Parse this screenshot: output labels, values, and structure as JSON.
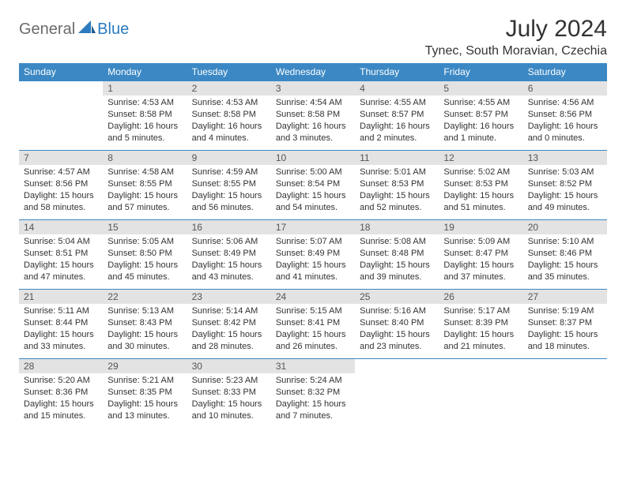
{
  "brand": {
    "part1": "General",
    "part2": "Blue"
  },
  "title": "July 2024",
  "location": "Tynec, South Moravian, Czechia",
  "colors": {
    "header_bg": "#3b88c4",
    "header_text": "#ffffff",
    "daynum_bg": "#e3e3e3",
    "daynum_text": "#555555",
    "body_text": "#333333",
    "border": "#3b88c4",
    "logo_gray": "#6b6b6b",
    "logo_blue": "#2b7bbf",
    "background": "#ffffff"
  },
  "typography": {
    "title_fontsize": 30,
    "location_fontsize": 16,
    "header_fontsize": 12,
    "daynum_fontsize": 12,
    "body_fontsize": 11
  },
  "weekdays": [
    "Sunday",
    "Monday",
    "Tuesday",
    "Wednesday",
    "Thursday",
    "Friday",
    "Saturday"
  ],
  "weeks": [
    [
      {
        "n": "",
        "sr": "",
        "ss": "",
        "dl": ""
      },
      {
        "n": "1",
        "sr": "Sunrise: 4:53 AM",
        "ss": "Sunset: 8:58 PM",
        "dl": "Daylight: 16 hours and 5 minutes."
      },
      {
        "n": "2",
        "sr": "Sunrise: 4:53 AM",
        "ss": "Sunset: 8:58 PM",
        "dl": "Daylight: 16 hours and 4 minutes."
      },
      {
        "n": "3",
        "sr": "Sunrise: 4:54 AM",
        "ss": "Sunset: 8:58 PM",
        "dl": "Daylight: 16 hours and 3 minutes."
      },
      {
        "n": "4",
        "sr": "Sunrise: 4:55 AM",
        "ss": "Sunset: 8:57 PM",
        "dl": "Daylight: 16 hours and 2 minutes."
      },
      {
        "n": "5",
        "sr": "Sunrise: 4:55 AM",
        "ss": "Sunset: 8:57 PM",
        "dl": "Daylight: 16 hours and 1 minute."
      },
      {
        "n": "6",
        "sr": "Sunrise: 4:56 AM",
        "ss": "Sunset: 8:56 PM",
        "dl": "Daylight: 16 hours and 0 minutes."
      }
    ],
    [
      {
        "n": "7",
        "sr": "Sunrise: 4:57 AM",
        "ss": "Sunset: 8:56 PM",
        "dl": "Daylight: 15 hours and 58 minutes."
      },
      {
        "n": "8",
        "sr": "Sunrise: 4:58 AM",
        "ss": "Sunset: 8:55 PM",
        "dl": "Daylight: 15 hours and 57 minutes."
      },
      {
        "n": "9",
        "sr": "Sunrise: 4:59 AM",
        "ss": "Sunset: 8:55 PM",
        "dl": "Daylight: 15 hours and 56 minutes."
      },
      {
        "n": "10",
        "sr": "Sunrise: 5:00 AM",
        "ss": "Sunset: 8:54 PM",
        "dl": "Daylight: 15 hours and 54 minutes."
      },
      {
        "n": "11",
        "sr": "Sunrise: 5:01 AM",
        "ss": "Sunset: 8:53 PM",
        "dl": "Daylight: 15 hours and 52 minutes."
      },
      {
        "n": "12",
        "sr": "Sunrise: 5:02 AM",
        "ss": "Sunset: 8:53 PM",
        "dl": "Daylight: 15 hours and 51 minutes."
      },
      {
        "n": "13",
        "sr": "Sunrise: 5:03 AM",
        "ss": "Sunset: 8:52 PM",
        "dl": "Daylight: 15 hours and 49 minutes."
      }
    ],
    [
      {
        "n": "14",
        "sr": "Sunrise: 5:04 AM",
        "ss": "Sunset: 8:51 PM",
        "dl": "Daylight: 15 hours and 47 minutes."
      },
      {
        "n": "15",
        "sr": "Sunrise: 5:05 AM",
        "ss": "Sunset: 8:50 PM",
        "dl": "Daylight: 15 hours and 45 minutes."
      },
      {
        "n": "16",
        "sr": "Sunrise: 5:06 AM",
        "ss": "Sunset: 8:49 PM",
        "dl": "Daylight: 15 hours and 43 minutes."
      },
      {
        "n": "17",
        "sr": "Sunrise: 5:07 AM",
        "ss": "Sunset: 8:49 PM",
        "dl": "Daylight: 15 hours and 41 minutes."
      },
      {
        "n": "18",
        "sr": "Sunrise: 5:08 AM",
        "ss": "Sunset: 8:48 PM",
        "dl": "Daylight: 15 hours and 39 minutes."
      },
      {
        "n": "19",
        "sr": "Sunrise: 5:09 AM",
        "ss": "Sunset: 8:47 PM",
        "dl": "Daylight: 15 hours and 37 minutes."
      },
      {
        "n": "20",
        "sr": "Sunrise: 5:10 AM",
        "ss": "Sunset: 8:46 PM",
        "dl": "Daylight: 15 hours and 35 minutes."
      }
    ],
    [
      {
        "n": "21",
        "sr": "Sunrise: 5:11 AM",
        "ss": "Sunset: 8:44 PM",
        "dl": "Daylight: 15 hours and 33 minutes."
      },
      {
        "n": "22",
        "sr": "Sunrise: 5:13 AM",
        "ss": "Sunset: 8:43 PM",
        "dl": "Daylight: 15 hours and 30 minutes."
      },
      {
        "n": "23",
        "sr": "Sunrise: 5:14 AM",
        "ss": "Sunset: 8:42 PM",
        "dl": "Daylight: 15 hours and 28 minutes."
      },
      {
        "n": "24",
        "sr": "Sunrise: 5:15 AM",
        "ss": "Sunset: 8:41 PM",
        "dl": "Daylight: 15 hours and 26 minutes."
      },
      {
        "n": "25",
        "sr": "Sunrise: 5:16 AM",
        "ss": "Sunset: 8:40 PM",
        "dl": "Daylight: 15 hours and 23 minutes."
      },
      {
        "n": "26",
        "sr": "Sunrise: 5:17 AM",
        "ss": "Sunset: 8:39 PM",
        "dl": "Daylight: 15 hours and 21 minutes."
      },
      {
        "n": "27",
        "sr": "Sunrise: 5:19 AM",
        "ss": "Sunset: 8:37 PM",
        "dl": "Daylight: 15 hours and 18 minutes."
      }
    ],
    [
      {
        "n": "28",
        "sr": "Sunrise: 5:20 AM",
        "ss": "Sunset: 8:36 PM",
        "dl": "Daylight: 15 hours and 15 minutes."
      },
      {
        "n": "29",
        "sr": "Sunrise: 5:21 AM",
        "ss": "Sunset: 8:35 PM",
        "dl": "Daylight: 15 hours and 13 minutes."
      },
      {
        "n": "30",
        "sr": "Sunrise: 5:23 AM",
        "ss": "Sunset: 8:33 PM",
        "dl": "Daylight: 15 hours and 10 minutes."
      },
      {
        "n": "31",
        "sr": "Sunrise: 5:24 AM",
        "ss": "Sunset: 8:32 PM",
        "dl": "Daylight: 15 hours and 7 minutes."
      },
      {
        "n": "",
        "sr": "",
        "ss": "",
        "dl": ""
      },
      {
        "n": "",
        "sr": "",
        "ss": "",
        "dl": ""
      },
      {
        "n": "",
        "sr": "",
        "ss": "",
        "dl": ""
      }
    ]
  ]
}
